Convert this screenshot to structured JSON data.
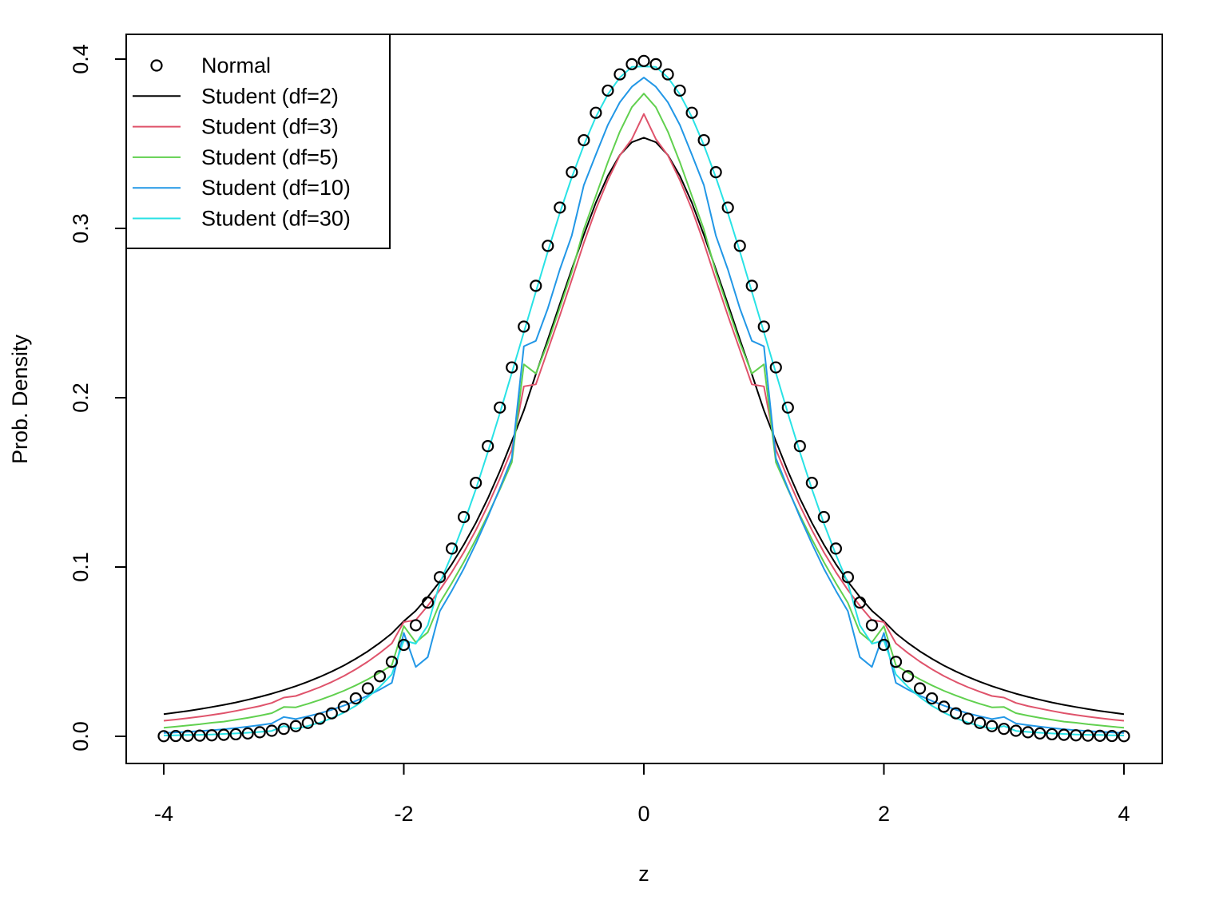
{
  "chart_data": {
    "type": "line",
    "title": "",
    "xlabel": "z",
    "ylabel": "Prob. Density",
    "xlim": [
      -4,
      4
    ],
    "ylim": [
      0,
      0.4
    ],
    "xticks": [
      -4,
      -2,
      0,
      2,
      4
    ],
    "xtick_labels": [
      "-4",
      "-2",
      "0",
      "2",
      "4"
    ],
    "yticks": [
      0.0,
      0.1,
      0.2,
      0.3,
      0.4
    ],
    "ytick_labels": [
      "0.0",
      "0.1",
      "0.2",
      "0.3",
      "0.4"
    ],
    "grid": false,
    "legend_position": "top-left",
    "x": [
      -4.0,
      -3.9,
      -3.8,
      -3.7,
      -3.6,
      -3.5,
      -3.4,
      -3.3,
      -3.2,
      -3.1,
      -3.0,
      -2.9,
      -2.8,
      -2.7,
      -2.6,
      -2.5,
      -2.4,
      -2.3,
      -2.2,
      -2.1,
      -2.0,
      -1.9,
      -1.8,
      -1.7,
      -1.6,
      -1.5,
      -1.4,
      -1.3,
      -1.2,
      -1.1,
      -1.0,
      -0.9,
      -0.8,
      -0.7,
      -0.6,
      -0.5,
      -0.4,
      -0.3,
      -0.2,
      -0.1,
      0.0,
      0.1,
      0.2,
      0.3,
      0.4,
      0.5,
      0.6,
      0.7,
      0.8,
      0.9,
      1.0,
      1.1,
      1.2,
      1.3,
      1.4,
      1.5,
      1.6,
      1.7,
      1.8,
      1.9,
      2.0,
      2.1,
      2.2,
      2.3,
      2.4,
      2.5,
      2.6,
      2.7,
      2.8,
      2.9,
      3.0,
      3.1,
      3.2,
      3.3,
      3.4,
      3.5,
      3.6,
      3.7,
      3.8,
      3.9,
      4.0
    ],
    "series": [
      {
        "name": "Normal",
        "style": "points",
        "color": "#000000",
        "values": [
          0.0001,
          0.0002,
          0.0003,
          0.0004,
          0.0006,
          0.0009,
          0.0012,
          0.0017,
          0.0024,
          0.0033,
          0.0044,
          0.006,
          0.0079,
          0.0104,
          0.0136,
          0.0175,
          0.0224,
          0.0283,
          0.0355,
          0.044,
          0.054,
          0.0656,
          0.079,
          0.094,
          0.1109,
          0.1295,
          0.1497,
          0.1714,
          0.1942,
          0.2179,
          0.242,
          0.2661,
          0.2897,
          0.3123,
          0.3332,
          0.3521,
          0.3683,
          0.3814,
          0.391,
          0.397,
          0.3989,
          0.397,
          0.391,
          0.3814,
          0.3683,
          0.3521,
          0.3332,
          0.3123,
          0.2897,
          0.2661,
          0.242,
          0.2179,
          0.1942,
          0.1714,
          0.1497,
          0.1295,
          0.1109,
          0.094,
          0.079,
          0.0656,
          0.054,
          0.044,
          0.0355,
          0.0283,
          0.0224,
          0.0175,
          0.0136,
          0.0104,
          0.0079,
          0.006,
          0.0044,
          0.0033,
          0.0024,
          0.0017,
          0.0012,
          0.0009,
          0.0006,
          0.0004,
          0.0003,
          0.0002,
          0.0001
        ]
      },
      {
        "name": "Student (df=2)",
        "style": "line",
        "color": "#000000",
        "values": [
          0.0131,
          0.014,
          0.015,
          0.0161,
          0.0173,
          0.0186,
          0.02,
          0.0216,
          0.0233,
          0.0252,
          0.0273,
          0.0296,
          0.0322,
          0.0351,
          0.0383,
          0.0418,
          0.0458,
          0.0502,
          0.0552,
          0.0608,
          0.068,
          0.0742,
          0.0823,
          0.0914,
          0.1017,
          0.1132,
          0.1261,
          0.1405,
          0.1566,
          0.1743,
          0.1925,
          0.2139,
          0.2344,
          0.2553,
          0.2759,
          0.2962,
          0.3152,
          0.3311,
          0.3433,
          0.3509,
          0.3536,
          0.3509,
          0.3433,
          0.3311,
          0.3152,
          0.2962,
          0.2759,
          0.2553,
          0.2344,
          0.2139,
          0.1925,
          0.1743,
          0.1566,
          0.1405,
          0.1261,
          0.1132,
          0.1017,
          0.0914,
          0.0823,
          0.0742,
          0.068,
          0.0608,
          0.0552,
          0.0502,
          0.0458,
          0.0418,
          0.0383,
          0.0351,
          0.0322,
          0.0296,
          0.0273,
          0.0252,
          0.0233,
          0.0216,
          0.02,
          0.0186,
          0.0173,
          0.0161,
          0.015,
          0.014,
          0.0131
        ]
      },
      {
        "name": "Student (df=3)",
        "style": "line",
        "color": "#DF536B",
        "values": [
          0.0092,
          0.0099,
          0.0107,
          0.0116,
          0.0126,
          0.0137,
          0.015,
          0.0164,
          0.0179,
          0.0197,
          0.0229,
          0.0238,
          0.0263,
          0.029,
          0.0321,
          0.0356,
          0.0396,
          0.0441,
          0.0492,
          0.0549,
          0.0675,
          0.0687,
          0.0771,
          0.0864,
          0.097,
          0.1087,
          0.1218,
          0.1363,
          0.1522,
          0.1694,
          0.2067,
          0.2079,
          0.2282,
          0.2485,
          0.2697,
          0.2915,
          0.3113,
          0.3285,
          0.3431,
          0.3528,
          0.3676,
          0.3528,
          0.3431,
          0.3285,
          0.3113,
          0.2915,
          0.2697,
          0.2485,
          0.2282,
          0.2079,
          0.2067,
          0.1694,
          0.1522,
          0.1363,
          0.1218,
          0.1087,
          0.097,
          0.0864,
          0.0771,
          0.0687,
          0.0675,
          0.0549,
          0.0492,
          0.0441,
          0.0396,
          0.0356,
          0.0321,
          0.029,
          0.0263,
          0.0238,
          0.0229,
          0.0197,
          0.0179,
          0.0164,
          0.015,
          0.0137,
          0.0126,
          0.0116,
          0.0107,
          0.0099,
          0.0092
        ]
      },
      {
        "name": "Student (df=5)",
        "style": "line",
        "color": "#61D04F",
        "values": [
          0.0051,
          0.0057,
          0.0064,
          0.0071,
          0.008,
          0.0087,
          0.0098,
          0.0109,
          0.0122,
          0.0137,
          0.0173,
          0.0171,
          0.0192,
          0.0215,
          0.0241,
          0.0269,
          0.0301,
          0.0337,
          0.0376,
          0.042,
          0.0651,
          0.0555,
          0.0614,
          0.0788,
          0.0905,
          0.1029,
          0.1163,
          0.1306,
          0.1458,
          0.1618,
          0.2197,
          0.2143,
          0.2324,
          0.2532,
          0.2743,
          0.2995,
          0.3192,
          0.3391,
          0.3571,
          0.3716,
          0.3796,
          0.3716,
          0.3571,
          0.3391,
          0.3192,
          0.2995,
          0.2743,
          0.2532,
          0.2324,
          0.2143,
          0.2197,
          0.1618,
          0.1458,
          0.1306,
          0.1163,
          0.1029,
          0.0905,
          0.0788,
          0.0614,
          0.0555,
          0.0651,
          0.042,
          0.0376,
          0.0337,
          0.0301,
          0.0269,
          0.0241,
          0.0215,
          0.0192,
          0.0171,
          0.0173,
          0.0137,
          0.0122,
          0.0109,
          0.0098,
          0.0087,
          0.008,
          0.0071,
          0.0064,
          0.0057,
          0.0051
        ]
      },
      {
        "name": "Student (df=10)",
        "style": "line",
        "color": "#2297E6",
        "values": [
          0.002,
          0.0023,
          0.0027,
          0.0031,
          0.0036,
          0.0042,
          0.0049,
          0.0057,
          0.0066,
          0.0076,
          0.0114,
          0.0102,
          0.0118,
          0.0136,
          0.0157,
          0.0181,
          0.0209,
          0.024,
          0.0276,
          0.0316,
          0.0611,
          0.041,
          0.0468,
          0.0739,
          0.086,
          0.099,
          0.1138,
          0.1296,
          0.1465,
          0.1643,
          0.2304,
          0.2336,
          0.2528,
          0.2757,
          0.2958,
          0.3256,
          0.3436,
          0.3611,
          0.3745,
          0.3837,
          0.3891,
          0.3837,
          0.3745,
          0.3611,
          0.3436,
          0.3256,
          0.2958,
          0.2757,
          0.2528,
          0.2336,
          0.2304,
          0.1643,
          0.1465,
          0.1296,
          0.1138,
          0.099,
          0.086,
          0.0739,
          0.0468,
          0.041,
          0.0611,
          0.0316,
          0.0276,
          0.024,
          0.0209,
          0.0181,
          0.0157,
          0.0136,
          0.0118,
          0.0102,
          0.0114,
          0.0076,
          0.0066,
          0.0057,
          0.0049,
          0.0042,
          0.0036,
          0.0031,
          0.0027,
          0.0023,
          0.002
        ]
      },
      {
        "name": "Student (df=30)",
        "style": "line",
        "color": "#28E2E5",
        "values": [
          0.0005,
          0.0006,
          0.0008,
          0.0009,
          0.0011,
          0.0014,
          0.0017,
          0.0021,
          0.0026,
          0.0032,
          0.0061,
          0.0045,
          0.0061,
          0.0081,
          0.0107,
          0.014,
          0.018,
          0.0231,
          0.0292,
          0.0366,
          0.0566,
          0.0547,
          0.0655,
          0.0905,
          0.1073,
          0.1257,
          0.146,
          0.1679,
          0.1908,
          0.2146,
          0.2387,
          0.2626,
          0.2863,
          0.3091,
          0.3302,
          0.3492,
          0.3658,
          0.3792,
          0.3891,
          0.3954,
          0.3956,
          0.3954,
          0.3891,
          0.3792,
          0.3658,
          0.3492,
          0.3302,
          0.3091,
          0.2863,
          0.2626,
          0.2387,
          0.2146,
          0.1908,
          0.1679,
          0.146,
          0.1257,
          0.1073,
          0.0905,
          0.0655,
          0.0547,
          0.0566,
          0.0366,
          0.0292,
          0.0231,
          0.018,
          0.014,
          0.0107,
          0.0081,
          0.0061,
          0.0045,
          0.0061,
          0.0032,
          0.0026,
          0.0021,
          0.0017,
          0.0014,
          0.0011,
          0.0009,
          0.0008,
          0.0006,
          0.0005
        ]
      }
    ]
  }
}
